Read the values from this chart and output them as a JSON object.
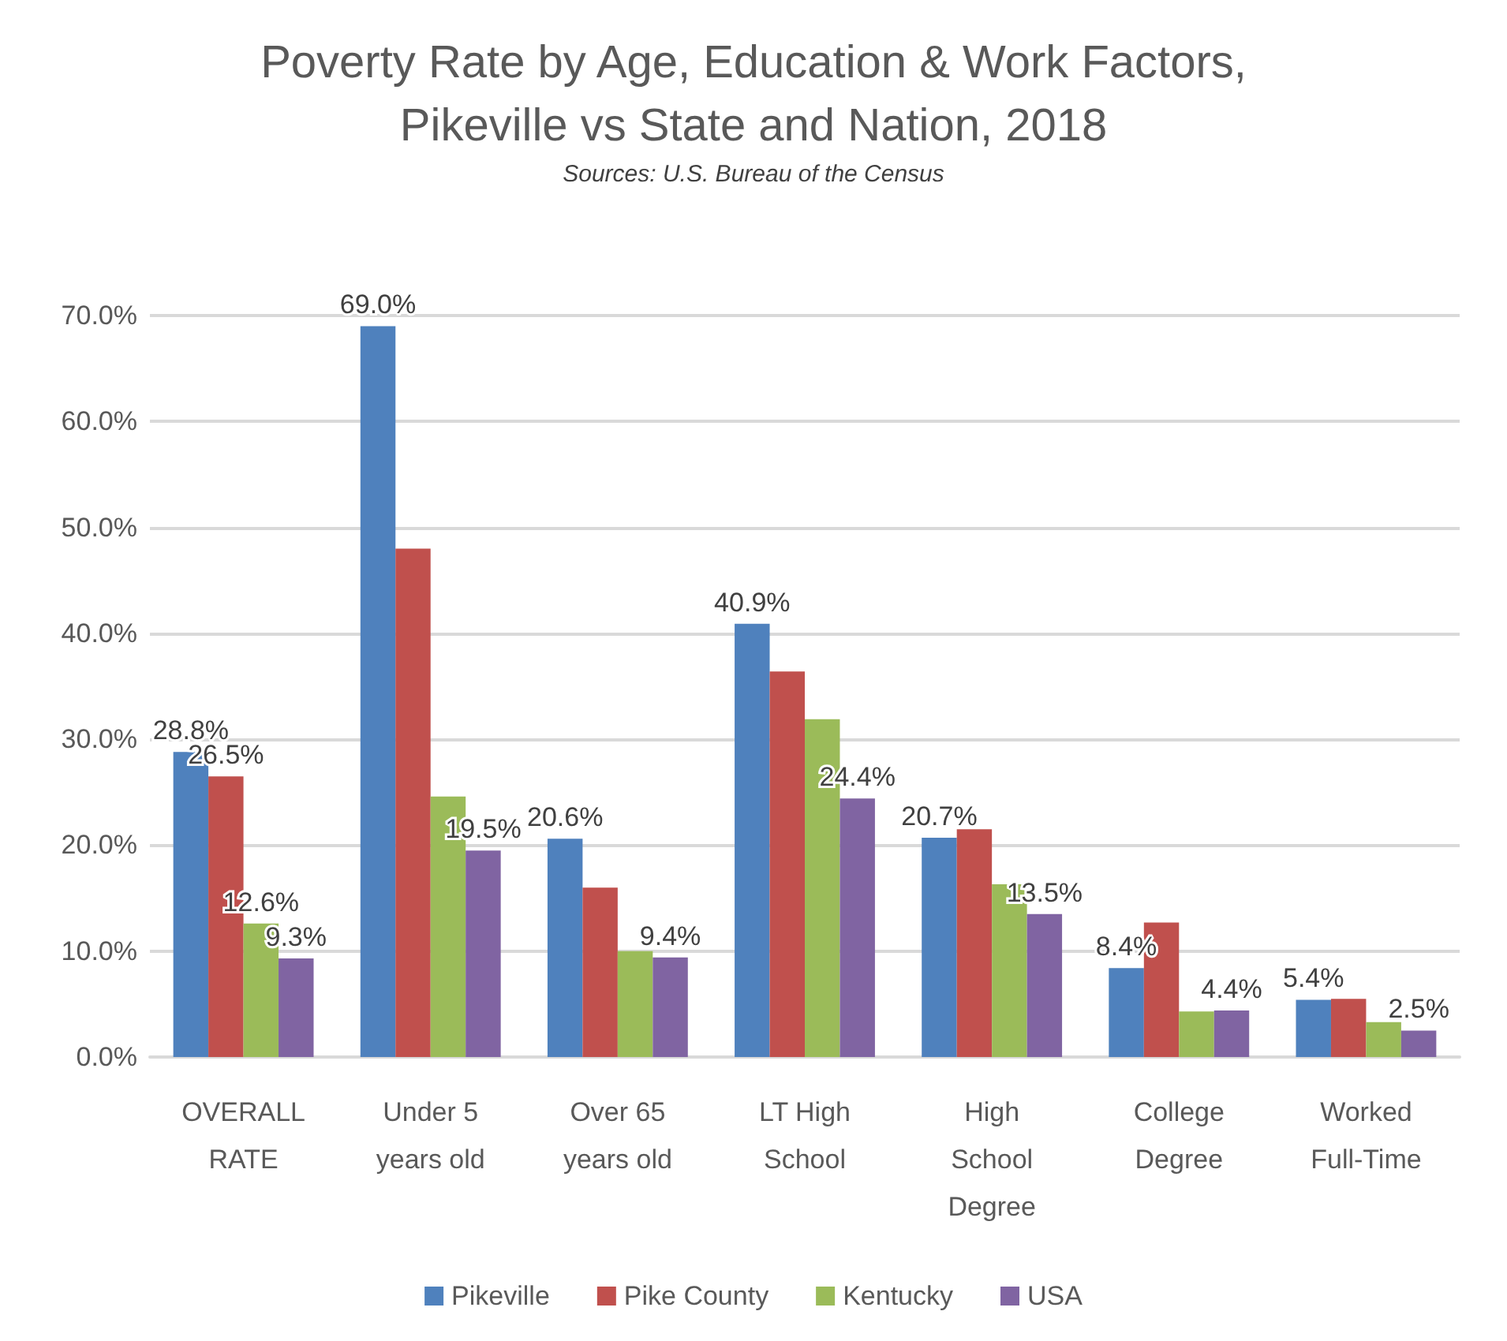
{
  "chart_data": {
    "type": "bar",
    "title": "Poverty Rate by Age, Education & Work Factors,\nPikeville vs State and Nation, 2018",
    "subtitle": "Sources: U.S. Bureau of the Census",
    "categories": [
      "OVERALL\nRATE",
      "Under 5\nyears old",
      "Over 65\nyears old",
      "LT High\nSchool",
      "High\nSchool\nDegree",
      "College\nDegree",
      "Worked\nFull-Time"
    ],
    "series": [
      {
        "name": "Pikeville",
        "color": "#4f81bd",
        "values": [
          28.8,
          69.0,
          20.6,
          40.9,
          20.7,
          8.4,
          5.4
        ],
        "value_labels": [
          "28.8%",
          "69.0%",
          "20.6%",
          "40.9%",
          "20.7%",
          "8.4%",
          "5.4%"
        ]
      },
      {
        "name": "Pike County",
        "color": "#c0504d",
        "values": [
          26.5,
          48.0,
          16.0,
          36.4,
          21.5,
          12.7,
          5.5
        ],
        "value_labels": [
          "26.5%",
          null,
          null,
          null,
          null,
          null,
          null
        ]
      },
      {
        "name": "Kentucky",
        "color": "#9bbb59",
        "values": [
          12.6,
          24.6,
          10.0,
          31.9,
          16.3,
          4.3,
          3.3
        ],
        "value_labels": [
          "12.6%",
          null,
          null,
          null,
          null,
          null,
          null
        ]
      },
      {
        "name": "USA",
        "color": "#8064a2",
        "values": [
          9.3,
          19.5,
          9.4,
          24.4,
          13.5,
          4.4,
          2.5
        ],
        "value_labels": [
          "9.3%",
          "19.5%",
          "9.4%",
          "24.4%",
          "13.5%",
          "4.4%",
          "2.5%"
        ]
      }
    ],
    "ylim": [
      0,
      70
    ],
    "yticks": [
      {
        "value": 0,
        "label": "0.0%"
      },
      {
        "value": 10,
        "label": "10.0%"
      },
      {
        "value": 20,
        "label": "20.0%"
      },
      {
        "value": 30,
        "label": "30.0%"
      },
      {
        "value": 40,
        "label": "40.0%"
      },
      {
        "value": 50,
        "label": "50.0%"
      },
      {
        "value": 60,
        "label": "60.0%"
      },
      {
        "value": 70,
        "label": "70.0%"
      }
    ],
    "grid": "y",
    "legend": "bottom"
  }
}
